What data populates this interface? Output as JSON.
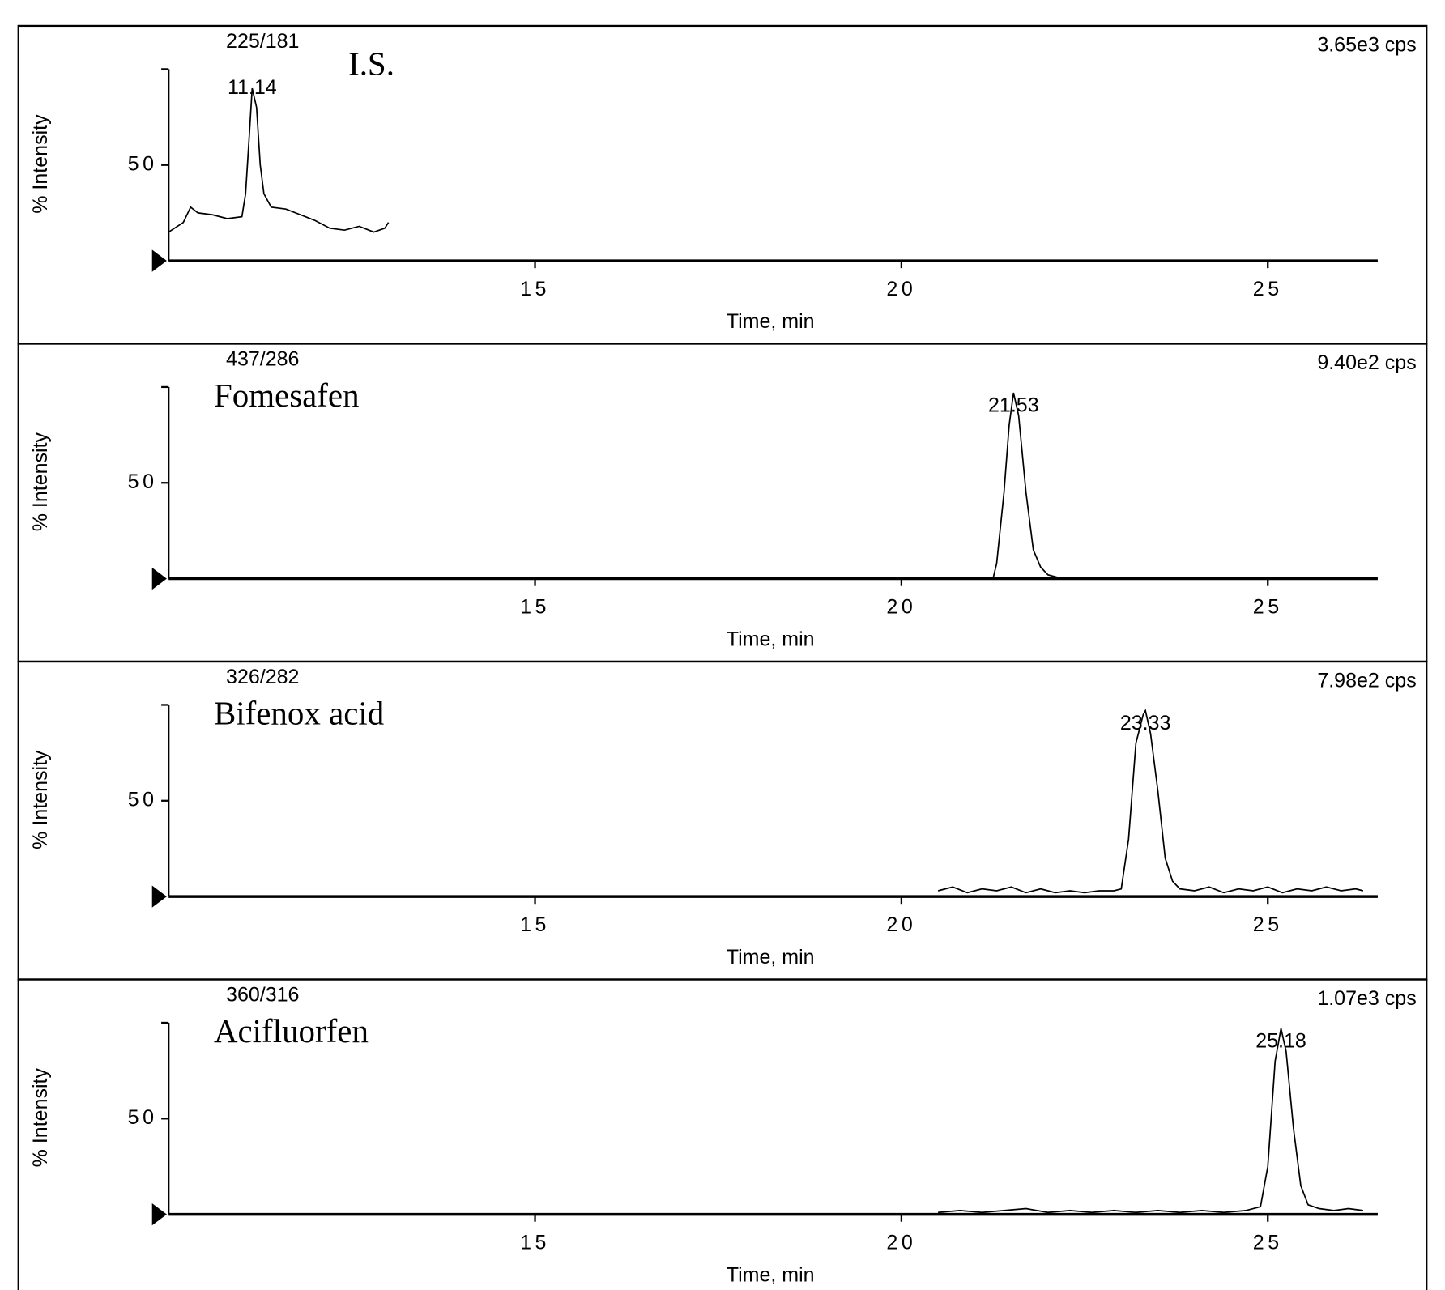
{
  "chart_data": [
    {
      "type": "line",
      "transition": "225/181",
      "compound": "I.S.",
      "intensity": "3.65e3 cps",
      "peak_label": "11.14",
      "y_label": "% Intensity",
      "x_label": "Time, min",
      "x": [
        10.0,
        10.2,
        10.3,
        10.4,
        10.6,
        10.8,
        11.0,
        11.05,
        11.1,
        11.14,
        11.2,
        11.25,
        11.3,
        11.4,
        11.6,
        11.8,
        12.0,
        12.2,
        12.4,
        12.6,
        12.8,
        12.95,
        13.0
      ],
      "series": [
        {
          "color": "#000000",
          "values": [
            15,
            20,
            28,
            25,
            24,
            22,
            23,
            35,
            65,
            90,
            80,
            50,
            35,
            28,
            27,
            24,
            21,
            17,
            16,
            18,
            15,
            17,
            20
          ]
        }
      ],
      "xlim": [
        10,
        26.5
      ],
      "ylim": [
        0,
        100
      ],
      "xticks": [
        15,
        20,
        25
      ],
      "yticks": [
        50
      ]
    },
    {
      "type": "line",
      "transition": "437/286",
      "compound": "Fomesafen",
      "intensity": "9.40e2 cps",
      "peak_label": "21.53",
      "y_label": "% Intensity",
      "x_label": "Time, min",
      "x": [
        21.25,
        21.3,
        21.4,
        21.47,
        21.53,
        21.6,
        21.7,
        21.8,
        21.9,
        22.0,
        22.2
      ],
      "series": [
        {
          "color": "#000000",
          "values": [
            0,
            8,
            45,
            80,
            97,
            85,
            45,
            15,
            6,
            2,
            0
          ]
        }
      ],
      "xlim": [
        10,
        26.5
      ],
      "ylim": [
        0,
        100
      ],
      "xticks": [
        15,
        20,
        25
      ],
      "yticks": [
        50
      ]
    },
    {
      "type": "line",
      "transition": "326/282",
      "compound": "Bifenox acid",
      "intensity": "7.98e2 cps",
      "peak_label": "23.33",
      "y_label": "% Intensity",
      "x_label": "Time, min",
      "x": [
        20.5,
        20.7,
        20.9,
        21.1,
        21.3,
        21.5,
        21.7,
        21.9,
        22.1,
        22.3,
        22.5,
        22.7,
        22.9,
        23.0,
        23.1,
        23.2,
        23.3,
        23.33,
        23.4,
        23.5,
        23.6,
        23.7,
        23.8,
        24.0,
        24.2,
        24.4,
        24.6,
        24.8,
        25.0,
        25.2,
        25.4,
        25.6,
        25.8,
        26.0,
        26.2,
        26.3
      ],
      "series": [
        {
          "color": "#000000",
          "values": [
            3,
            5,
            2,
            4,
            3,
            5,
            2,
            4,
            2,
            3,
            2,
            3,
            3,
            4,
            30,
            80,
            95,
            97,
            85,
            55,
            20,
            8,
            4,
            3,
            5,
            2,
            4,
            3,
            5,
            2,
            4,
            3,
            5,
            3,
            4,
            3
          ]
        }
      ],
      "xlim": [
        10,
        26.5
      ],
      "ylim": [
        0,
        100
      ],
      "xticks": [
        15,
        20,
        25
      ],
      "yticks": [
        50
      ]
    },
    {
      "type": "line",
      "transition": "360/316",
      "compound": "Acifluorfen",
      "intensity": "1.07e3 cps",
      "peak_label": "25.18",
      "y_label": "% Intensity",
      "x_label": "Time, min",
      "x": [
        20.5,
        20.8,
        21.1,
        21.4,
        21.7,
        22.0,
        22.3,
        22.6,
        22.9,
        23.2,
        23.5,
        23.8,
        24.1,
        24.4,
        24.7,
        24.9,
        25.0,
        25.1,
        25.18,
        25.25,
        25.35,
        25.45,
        25.55,
        25.7,
        25.9,
        26.1,
        26.3
      ],
      "series": [
        {
          "color": "#000000",
          "values": [
            1,
            2,
            1,
            2,
            3,
            1,
            2,
            1,
            2,
            1,
            2,
            1,
            2,
            1,
            2,
            4,
            25,
            80,
            97,
            85,
            45,
            15,
            5,
            3,
            2,
            3,
            2
          ]
        }
      ],
      "xlim": [
        10,
        26.5
      ],
      "ylim": [
        0,
        100
      ],
      "xticks": [
        15,
        20,
        25
      ],
      "yticks": [
        50
      ]
    }
  ]
}
